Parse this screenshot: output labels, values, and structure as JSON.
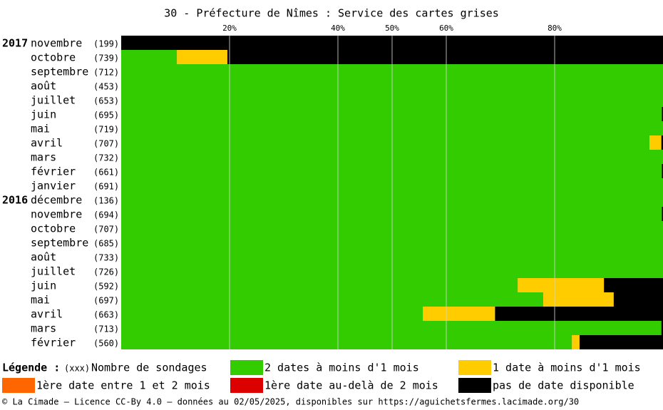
{
  "chart_data": {
    "type": "stacked-barh",
    "title": "30 - Préfecture de Nîmes : Service des cartes grises",
    "years": [
      "2017",
      null,
      null,
      null,
      null,
      null,
      null,
      null,
      null,
      null,
      null,
      "2016",
      null,
      null,
      null,
      null,
      null,
      null,
      null,
      null,
      null,
      null
    ],
    "categories": [
      "novembre",
      "octobre",
      "septembre",
      "août",
      "juillet",
      "juin",
      "mai",
      "avril",
      "mars",
      "février",
      "janvier",
      "décembre",
      "novembre",
      "octobre",
      "septembre",
      "août",
      "juillet",
      "juin",
      "mai",
      "avril",
      "mars",
      "février"
    ],
    "counts": [
      "(199)",
      "(739)",
      "(712)",
      "(453)",
      "(653)",
      "(695)",
      "(719)",
      "(707)",
      "(732)",
      "(661)",
      "(691)",
      "(136)",
      "(694)",
      "(707)",
      "(685)",
      "(733)",
      "(726)",
      "(592)",
      "(697)",
      "(663)",
      "(713)",
      "(560)"
    ],
    "xlim": [
      0,
      100
    ],
    "xticks": [
      {
        "value": 20,
        "label": "20%"
      },
      {
        "value": 40,
        "label": "40%"
      },
      {
        "value": 50,
        "label": "50%"
      },
      {
        "value": 60,
        "label": "60%"
      },
      {
        "value": 80,
        "label": "80%"
      }
    ],
    "series": [
      {
        "name": "2 dates à moins d'1 mois",
        "color": "#33cc00",
        "values": [
          0,
          10.3,
          100,
          100,
          100,
          99.8,
          100,
          97.5,
          100,
          99.8,
          100,
          100,
          99.8,
          100,
          100,
          100,
          100,
          73.2,
          77.9,
          55.7,
          99.7,
          83.2
        ]
      },
      {
        "name": "1 date à moins d'1 mois",
        "color": "#ffcc00",
        "values": [
          0,
          9.3,
          0,
          0,
          0,
          0,
          0,
          2.2,
          0,
          0,
          0,
          0,
          0,
          0,
          0,
          0,
          0,
          15.9,
          13.0,
          13.3,
          0,
          1.4
        ]
      },
      {
        "name": "1ère date entre 1 et 2 mois",
        "color": "#ff6600",
        "values": [
          0,
          0,
          0,
          0,
          0,
          0,
          0,
          0,
          0,
          0,
          0,
          0,
          0,
          0,
          0,
          0,
          0,
          0,
          0,
          0,
          0,
          0
        ]
      },
      {
        "name": "1ère date au-delà de 2 mois",
        "color": "#dd0000",
        "values": [
          0,
          0,
          0,
          0,
          0,
          0,
          0,
          0,
          0,
          0,
          0,
          0,
          0,
          0,
          0,
          0,
          0,
          0,
          0,
          0,
          0,
          0
        ]
      },
      {
        "name": "pas de date disponible",
        "color": "#000000",
        "values": [
          100,
          80.4,
          0,
          0,
          0,
          0.2,
          0,
          0.3,
          0,
          0.2,
          0,
          0,
          0.2,
          0,
          0,
          0,
          0,
          10.9,
          9.1,
          31.0,
          0.3,
          15.4
        ]
      }
    ],
    "legend": {
      "title": "Légende :",
      "count_sample": "(xxx)",
      "count_label": "Nombre de sondages"
    },
    "footer": "© La Cimade — Licence CC-By 4.0 — données au 02/05/2025, disponibles sur https://aguichetsfermes.lacimade.org/30"
  }
}
